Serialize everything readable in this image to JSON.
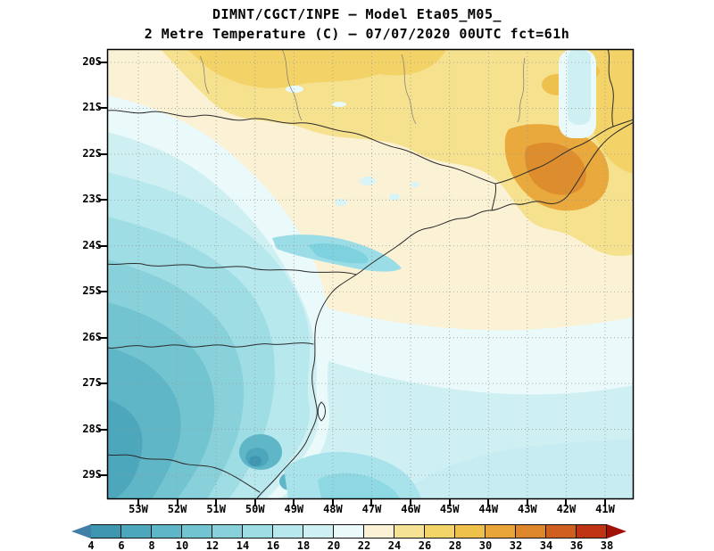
{
  "header": {
    "line1": "DIMNT/CGCT/INPE –  Model Eta05_M05_",
    "line2": "2 Metre Temperature (C) –  07/07/2020 00UTC fct=61h"
  },
  "axes": {
    "lat_labels": [
      "20S",
      "21S",
      "22S",
      "23S",
      "24S",
      "25S",
      "26S",
      "27S",
      "28S",
      "29S"
    ],
    "lon_labels": [
      "53W",
      "52W",
      "51W",
      "50W",
      "49W",
      "48W",
      "47W",
      "46W",
      "45W",
      "44W",
      "43W",
      "42W",
      "41W"
    ]
  },
  "colorbar": {
    "values": [
      "4",
      "6",
      "8",
      "10",
      "12",
      "14",
      "16",
      "18",
      "20",
      "22",
      "24",
      "26",
      "28",
      "30",
      "32",
      "34",
      "36",
      "38"
    ],
    "arrow_left_color": "#3f7fa8",
    "arrow_right_color": "#a01208",
    "segment_colors": [
      "#3e96b0",
      "#4da7bc",
      "#5fb6c7",
      "#73c4d1",
      "#89d1da",
      "#9fdde4",
      "#b6e8ed",
      "#cff0f3",
      "#eaf9fa",
      "#fbf2d6",
      "#f6e293",
      "#f3d469",
      "#eec14c",
      "#e8a53a",
      "#dd862b",
      "#cf5f1e",
      "#bf3514"
    ]
  }
}
